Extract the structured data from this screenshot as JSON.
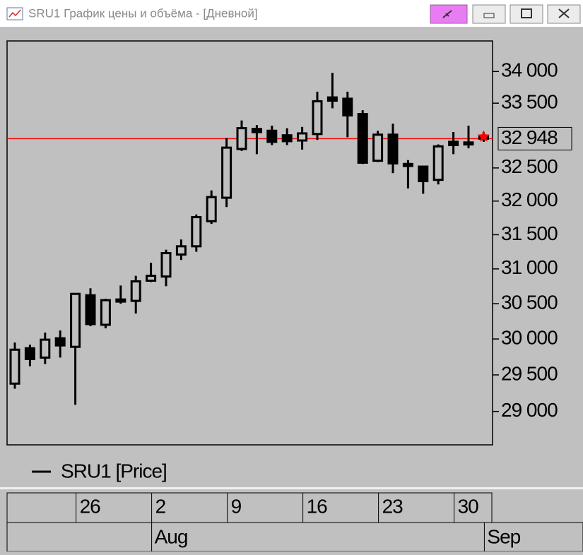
{
  "window_title": "SRU1 График цены и объёма - [Дневной]",
  "chart_data": {
    "type": "candlestick",
    "legend": "SRU1 [Price]",
    "log_scale": true,
    "categories": [
      null,
      null,
      null,
      null,
      "26",
      null,
      null,
      null,
      null,
      "2",
      null,
      null,
      null,
      null,
      "9",
      null,
      null,
      null,
      null,
      "16",
      null,
      null,
      null,
      null,
      "23",
      null,
      null,
      null,
      null,
      "30",
      null,
      null
    ],
    "months": [
      null,
      null,
      null,
      null,
      null,
      null,
      null,
      null,
      null,
      "Aug",
      null,
      null,
      null,
      null,
      null,
      null,
      null,
      null,
      null,
      null,
      null,
      null,
      null,
      null,
      null,
      null,
      null,
      null,
      null,
      null,
      null,
      "Sep"
    ],
    "open": [
      29380,
      29870,
      29740,
      30010,
      29890,
      30620,
      30200,
      30560,
      30540,
      30830,
      30890,
      31210,
      31330,
      31700,
      32050,
      32790,
      33100,
      33070,
      33000,
      32920,
      33020,
      33590,
      33570,
      33330,
      32610,
      33010,
      32560,
      32520,
      32320,
      32900,
      32890,
      32990
    ],
    "high": [
      29950,
      29920,
      30090,
      30120,
      30640,
      30720,
      30570,
      30760,
      30900,
      31090,
      31280,
      31430,
      31800,
      32160,
      32960,
      33230,
      33160,
      33150,
      33110,
      33130,
      33680,
      33980,
      33680,
      33390,
      33070,
      33180,
      32620,
      32520,
      32860,
      33050,
      33150,
      33050
    ],
    "low": [
      29310,
      29620,
      29650,
      29740,
      29090,
      30180,
      30150,
      30500,
      30360,
      30810,
      30750,
      31130,
      31250,
      31660,
      31910,
      32760,
      32710,
      32850,
      32850,
      32780,
      32930,
      33420,
      32970,
      32560,
      32590,
      32420,
      32190,
      32110,
      32250,
      32710,
      32800,
      32900
    ],
    "close": [
      29850,
      29720,
      29990,
      29910,
      30640,
      30210,
      30550,
      30530,
      30820,
      30900,
      31230,
      31330,
      31760,
      32060,
      32810,
      33110,
      33050,
      32900,
      32910,
      33030,
      33530,
      33540,
      33310,
      32580,
      33010,
      32570,
      32530,
      32300,
      32830,
      32850,
      32860,
      32948
    ],
    "up_color": "#c0c0c0",
    "down_color": "#000000",
    "line_color": "#ff0000",
    "last_price": {
      "value": 32948,
      "label": "32 948"
    },
    "ylim": [
      28550,
      34490
    ],
    "yticks": [
      {
        "value": 29000,
        "label": "29 000"
      },
      {
        "value": 29500,
        "label": "29 500"
      },
      {
        "value": 30000,
        "label": "30 000"
      },
      {
        "value": 30500,
        "label": "30 500"
      },
      {
        "value": 31000,
        "label": "31 000"
      },
      {
        "value": 31500,
        "label": "31 500"
      },
      {
        "value": 32000,
        "label": "32 000"
      },
      {
        "value": 32500,
        "label": "32 500"
      },
      {
        "value": 33500,
        "label": "33 500"
      },
      {
        "value": 34000,
        "label": "34 000"
      }
    ]
  }
}
